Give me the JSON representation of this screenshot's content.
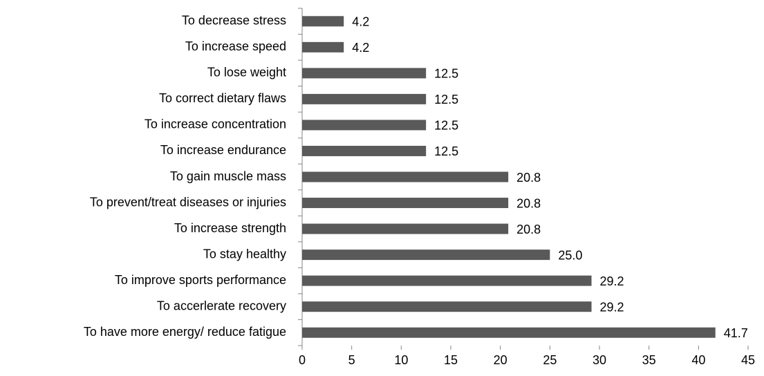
{
  "chart_data": {
    "type": "bar",
    "orientation": "horizontal",
    "categories": [
      "To decrease stress",
      "To increase speed",
      "To lose weight",
      "To correct dietary flaws",
      "To increase concentration",
      "To increase endurance",
      "To gain muscle mass",
      "To prevent/treat diseases or injuries",
      "To increase strength",
      "To stay healthy",
      "To improve sports performance",
      "To accerlerate recovery",
      "To have more energy/ reduce fatigue"
    ],
    "values": [
      4.2,
      4.2,
      12.5,
      12.5,
      12.5,
      12.5,
      20.8,
      20.8,
      20.8,
      25,
      29.2,
      29.2,
      41.7
    ],
    "value_labels": [
      "4.2",
      "4.2",
      "12.5",
      "12.5",
      "12.5",
      "12.5",
      "20.8",
      "20.8",
      "20.8",
      "25.0",
      "29.2",
      "29.2",
      "41.7"
    ],
    "color": "#595959",
    "xlim": [
      0,
      45
    ],
    "xticks": [
      0,
      5,
      10,
      15,
      20,
      25,
      30,
      35,
      40,
      45
    ],
    "grid": false
  }
}
